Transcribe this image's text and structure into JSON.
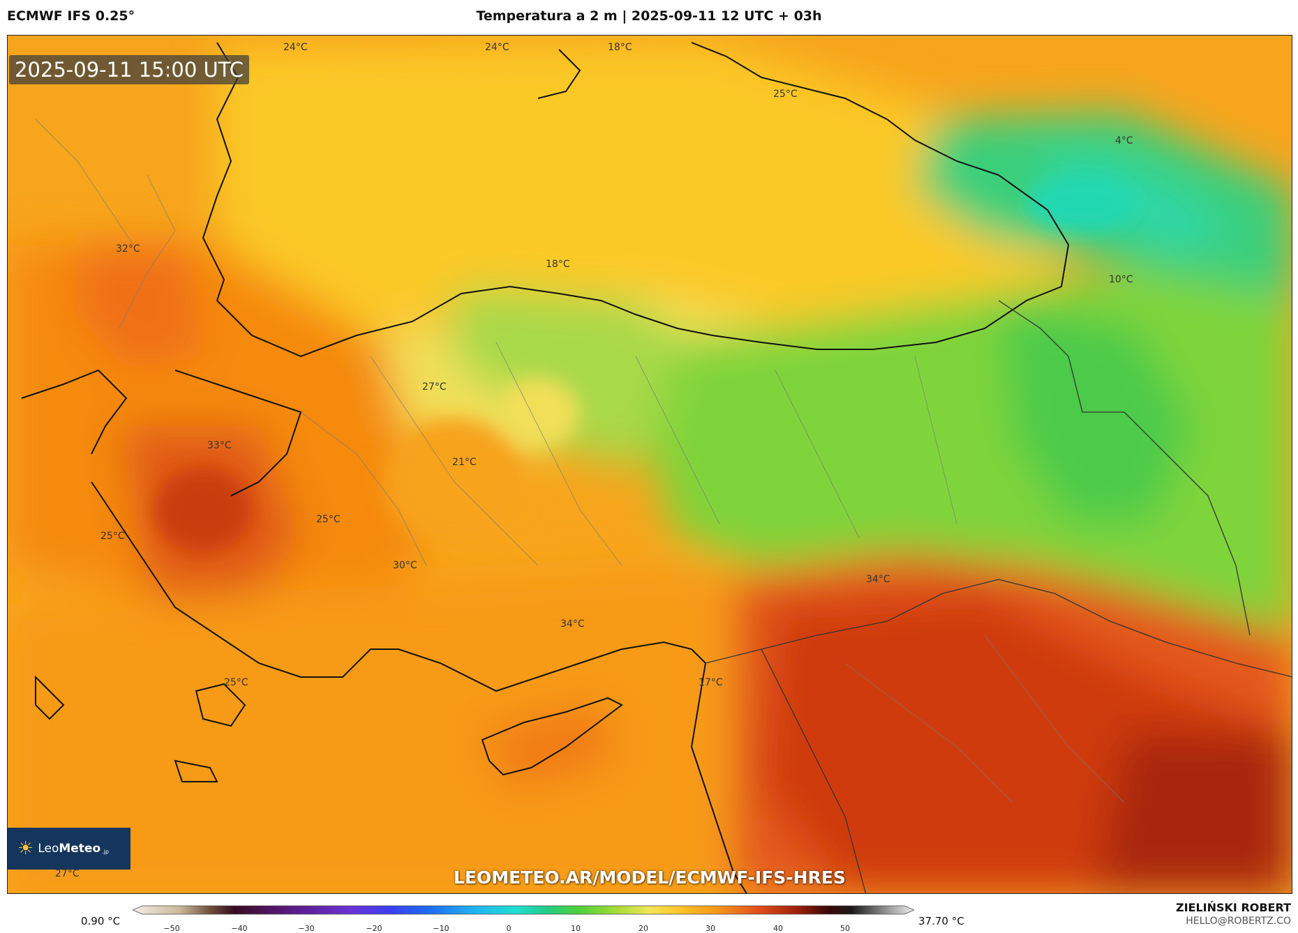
{
  "header": {
    "model": "ECMWF IFS 0.25°",
    "title": "Temperatura a 2 m | 2025-09-11 12 UTC + 03h"
  },
  "map": {
    "timestamp": "2025-09-11 15:00 UTC",
    "watermark": "LEOMETEO.AR/MODEL/ECMWF-IFS-HRES",
    "labels": [
      {
        "text": "24°C"
      },
      {
        "text": "24°C"
      },
      {
        "text": "18°C"
      },
      {
        "text": "25°C"
      },
      {
        "text": "4°C"
      },
      {
        "text": "32°C"
      },
      {
        "text": "18°C"
      },
      {
        "text": "10°C"
      },
      {
        "text": "27°C"
      },
      {
        "text": "33°C"
      },
      {
        "text": "21°C"
      },
      {
        "text": "25°C"
      },
      {
        "text": "25°C"
      },
      {
        "text": "30°C"
      },
      {
        "text": "34°C"
      },
      {
        "text": "34°C"
      },
      {
        "text": "17°C"
      },
      {
        "text": "25°C"
      },
      {
        "text": "27°C"
      }
    ],
    "colors": {
      "sea": "#fbc52a",
      "land_hot": "#f58a10",
      "hottest": "#c8300c",
      "cool": "#7fd43a",
      "coldest": "#2fd7a8"
    }
  },
  "logo": {
    "brand_light": "Leo",
    "brand_bold": "Meteo",
    "suffix": ".jp"
  },
  "footer": {
    "min_value": "0.90 °C",
    "max_value": "37.70 °C",
    "author_name": "ZIELIŃSKI ROBERT",
    "author_email": "HELLO@ROBERTZ.CO",
    "scale_ticks": [
      "−50",
      "−40",
      "−30",
      "−20",
      "−10",
      "0",
      "10",
      "20",
      "30",
      "40",
      "50"
    ]
  }
}
